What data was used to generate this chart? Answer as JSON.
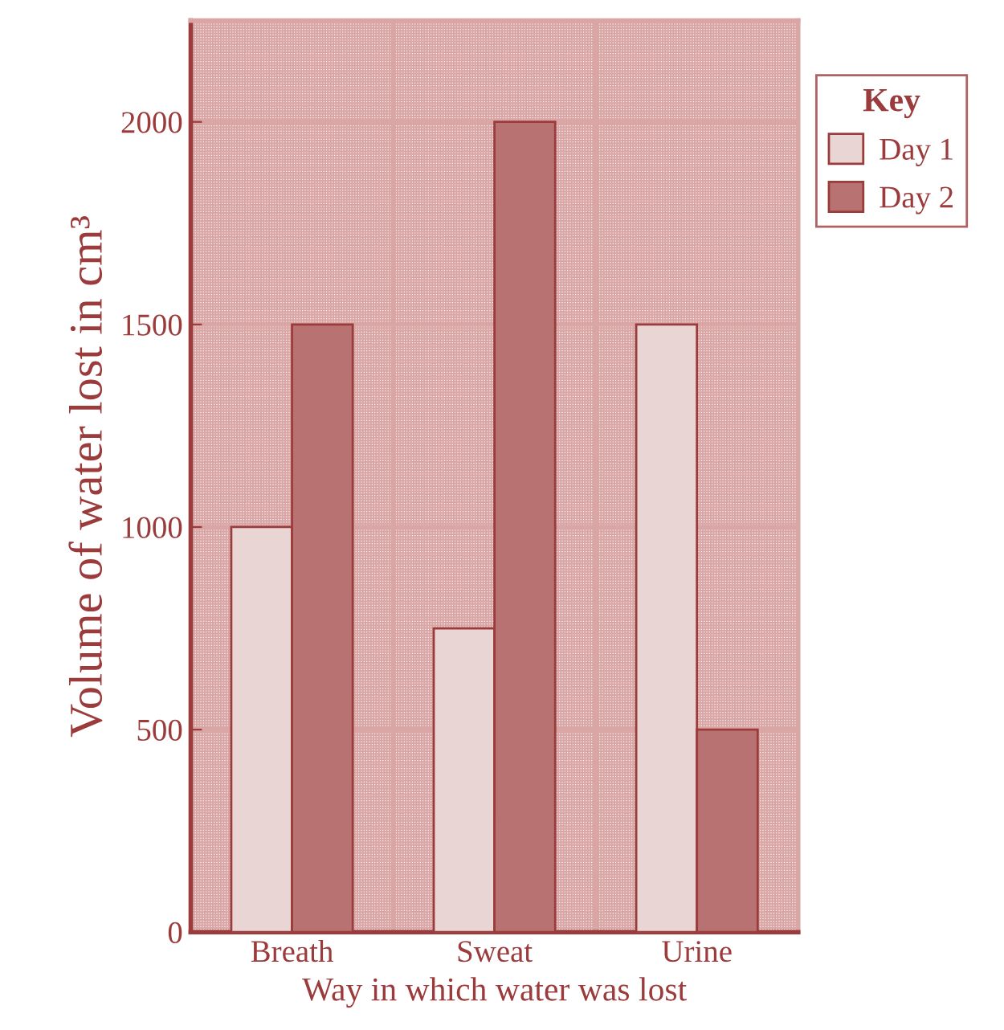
{
  "chart_data": {
    "type": "bar",
    "xlabel": "Way in which water was lost",
    "ylabel": "Volume of water lost in cm³",
    "categories": [
      "Breath",
      "Sweat",
      "Urine"
    ],
    "series": [
      {
        "name": "Day 1",
        "color": "#ead5d5",
        "values": [
          1000,
          750,
          1500
        ]
      },
      {
        "name": "Day 2",
        "color": "#b87272",
        "values": [
          1500,
          2000,
          500
        ]
      }
    ],
    "legend_title": "Key",
    "legend": "top right",
    "ylim": [
      0,
      2250
    ],
    "yticks": [
      0,
      500,
      1000,
      1500,
      2000
    ],
    "grid": true
  }
}
